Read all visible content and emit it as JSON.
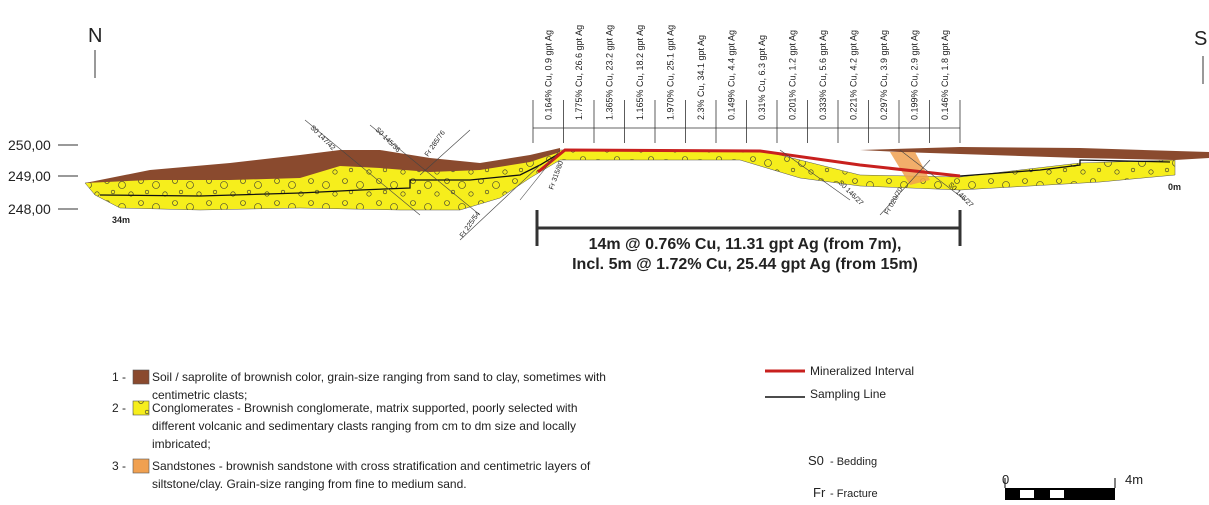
{
  "header": {
    "north": "N",
    "south": "S"
  },
  "elevations": [
    "250,00",
    "249,00",
    "248,00"
  ],
  "samples": [
    "0.164% Cu, 0.9 gpt Ag",
    "1.775% Cu, 26.6 gpt Ag",
    "1.365% Cu, 23.2 gpt Ag",
    "1.165% Cu, 18.2 gpt Ag",
    "1.970% Cu, 25.1 gpt Ag",
    "2.3% Cu, 34.1 gpt Ag",
    "0.149% Cu, 4.4 gpt Ag",
    "0.31% Cu, 6.3 gpt Ag",
    "0.201% Cu, 1.2 gpt Ag",
    "0.333% Cu, 5.6 gpt Ag",
    "0.221% Cu, 4.2 gpt Ag",
    "0.297% Cu, 3.9 gpt Ag",
    "0.199% Cu, 2.9 gpt Ag",
    "0.146% Cu, 1.8 gpt Ag"
  ],
  "structures": [
    "S0 147/42",
    "S0 145/36",
    "Fr 285/76",
    "Fr 315/80",
    "Fr 225/54",
    "S0 146/27",
    "Fr 020/70",
    "S0 146/27"
  ],
  "distances": {
    "start": "34m",
    "end": "0m"
  },
  "intercept": {
    "line1": "14m @ 0.76% Cu, 11.31 gpt Ag (from 7m),",
    "line2": "Incl. 5m @ 1.72% Cu, 25.44 gpt Ag  (from 15m)"
  },
  "legend": {
    "units": [
      {
        "number": "1 -",
        "lines": [
          "Soil / saprolite of brownish color, grain-size ranging from sand to clay, sometimes with",
          "centimetric clasts;"
        ]
      },
      {
        "number": "2 -",
        "lines": [
          "Conglomerates - Brownish conglomerate, matrix supported, poorly selected with",
          "different volcanic and sedimentary clasts ranging from cm to dm size and locally",
          "imbricated;"
        ]
      },
      {
        "number": "3 -",
        "lines": [
          "Sandstones - brownish sandstone with cross stratification and centimetric layers of",
          "siltstone/clay. Grain-size ranging from fine to medium sand."
        ]
      }
    ],
    "lines": [
      "Mineralized Interval",
      "Sampling Line"
    ],
    "abbreviations": [
      {
        "code": "S0",
        "meaning": "- Bedding"
      },
      {
        "code": "Fr",
        "meaning": "- Fracture"
      }
    ]
  },
  "scale": {
    "start": "0",
    "end": "4m"
  }
}
